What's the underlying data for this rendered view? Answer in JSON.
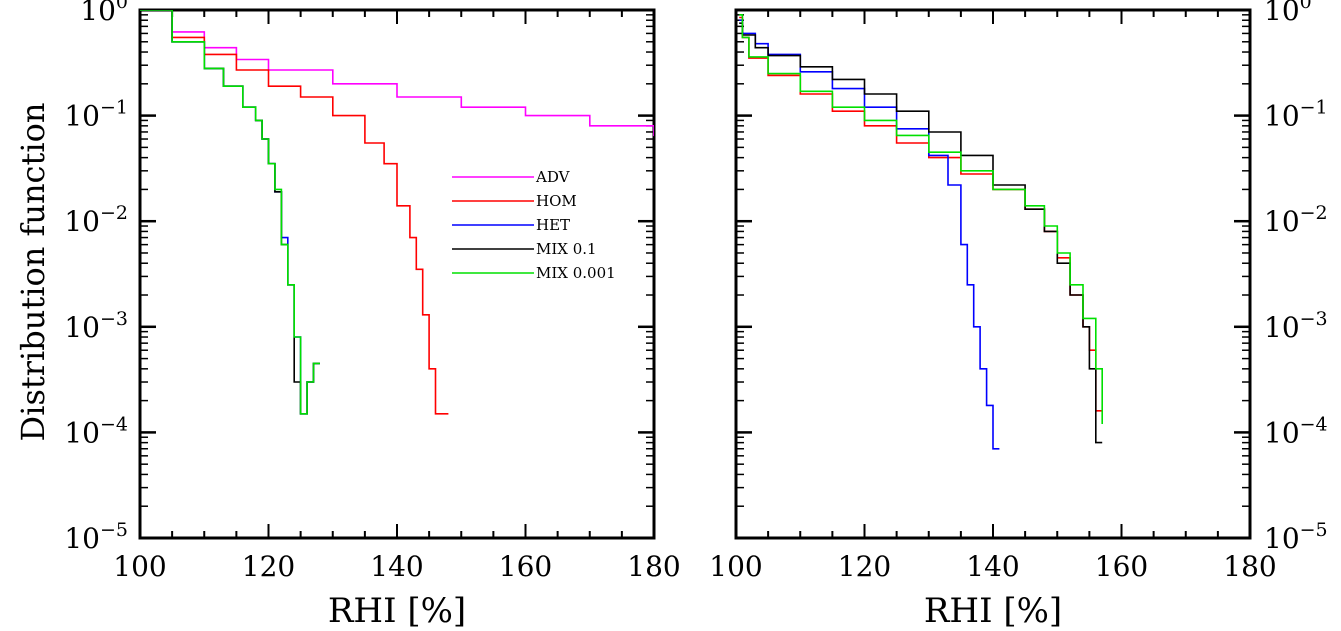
{
  "figure": {
    "ylabel": "Distribution function",
    "legend": {
      "placement": "left panel, right-center",
      "entries": [
        {
          "name": "ADV",
          "color": "#ff00ff"
        },
        {
          "name": "HOM",
          "color": "#ff0000"
        },
        {
          "name": "HET",
          "color": "#0000ff"
        },
        {
          "name": "MIX 0.1",
          "color": "#000000"
        },
        {
          "name": "MIX 0.001",
          "color": "#00e000"
        }
      ]
    }
  },
  "chart_data": [
    {
      "type": "line",
      "panel": "left",
      "xlabel": "RHI [%]",
      "ylabel": "Distribution function",
      "xlim": [
        100,
        180
      ],
      "ylim": [
        1e-05,
        1
      ],
      "yscale": "log",
      "xticks": [
        100,
        120,
        140,
        160,
        180
      ],
      "yticks": [
        {
          "value": 1,
          "base": "10",
          "exp": "0"
        },
        {
          "value": 0.1,
          "base": "10",
          "exp": "−1"
        },
        {
          "value": 0.01,
          "base": "10",
          "exp": "−2"
        },
        {
          "value": 0.001,
          "base": "10",
          "exp": "−3"
        },
        {
          "value": 0.0001,
          "base": "10",
          "exp": "−4"
        },
        {
          "value": 1e-05,
          "base": "10",
          "exp": "−5"
        }
      ],
      "grid": false,
      "series": [
        {
          "name": "ADV",
          "color": "#ff00ff",
          "points": [
            [
              100,
              1
            ],
            [
              105,
              0.62
            ],
            [
              110,
              0.44
            ],
            [
              115,
              0.34
            ],
            [
              120,
              0.27
            ],
            [
              130,
              0.2
            ],
            [
              140,
              0.15
            ],
            [
              150,
              0.12
            ],
            [
              160,
              0.1
            ],
            [
              170,
              0.08
            ],
            [
              180,
              0.064
            ]
          ]
        },
        {
          "name": "HOM",
          "color": "#ff0000",
          "points": [
            [
              100,
              1
            ],
            [
              105,
              0.55
            ],
            [
              110,
              0.38
            ],
            [
              115,
              0.27
            ],
            [
              120,
              0.19
            ],
            [
              125,
              0.15
            ],
            [
              130,
              0.1
            ],
            [
              135,
              0.055
            ],
            [
              138,
              0.035
            ],
            [
              140,
              0.014
            ],
            [
              142,
              0.007
            ],
            [
              143,
              0.0035
            ],
            [
              144,
              0.0013
            ],
            [
              145,
              0.0004
            ],
            [
              146,
              0.00015
            ],
            [
              148,
              0.00015
            ]
          ]
        },
        {
          "name": "HET",
          "color": "#0000ff",
          "points": [
            [
              100,
              1
            ],
            [
              105,
              0.5
            ],
            [
              110,
              0.28
            ],
            [
              113,
              0.19
            ],
            [
              116,
              0.12
            ],
            [
              118,
              0.09
            ],
            [
              119,
              0.06
            ],
            [
              120,
              0.035
            ],
            [
              121,
              0.019
            ],
            [
              122,
              0.007
            ],
            [
              123,
              0.0025
            ],
            [
              124,
              0.0008
            ],
            [
              125,
              0.00015
            ],
            [
              126,
              0.0003
            ],
            [
              127,
              0.00045
            ],
            [
              128,
              0.00045
            ]
          ]
        },
        {
          "name": "MIX 0.1",
          "color": "#000000",
          "points": [
            [
              100,
              1
            ],
            [
              105,
              0.5
            ],
            [
              110,
              0.28
            ],
            [
              113,
              0.19
            ],
            [
              116,
              0.12
            ],
            [
              118,
              0.09
            ],
            [
              119,
              0.06
            ],
            [
              120,
              0.035
            ],
            [
              121,
              0.019
            ],
            [
              122,
              0.006
            ],
            [
              123,
              0.0025
            ],
            [
              124,
              0.0003
            ],
            [
              125,
              0.00015
            ],
            [
              126,
              0.0003
            ],
            [
              127,
              0.00045
            ],
            [
              128,
              0.00045
            ]
          ]
        },
        {
          "name": "MIX 0.001",
          "color": "#00e000",
          "points": [
            [
              100,
              1
            ],
            [
              105,
              0.5
            ],
            [
              110,
              0.28
            ],
            [
              113,
              0.19
            ],
            [
              116,
              0.12
            ],
            [
              118,
              0.09
            ],
            [
              119,
              0.06
            ],
            [
              120,
              0.035
            ],
            [
              121,
              0.02
            ],
            [
              122,
              0.006
            ],
            [
              123,
              0.0025
            ],
            [
              124,
              0.0008
            ],
            [
              125,
              0.00015
            ],
            [
              126,
              0.0003
            ],
            [
              127,
              0.00045
            ],
            [
              128,
              0.00045
            ]
          ]
        }
      ]
    },
    {
      "type": "line",
      "panel": "right",
      "xlabel": "RHI [%]",
      "xlim": [
        100,
        180
      ],
      "ylim": [
        1e-05,
        1
      ],
      "yscale": "log",
      "xticks": [
        100,
        120,
        140,
        160,
        180
      ],
      "yticks": [
        {
          "value": 1,
          "base": "10",
          "exp": "0"
        },
        {
          "value": 0.1,
          "base": "10",
          "exp": "−1"
        },
        {
          "value": 0.01,
          "base": "10",
          "exp": "−2"
        },
        {
          "value": 0.001,
          "base": "10",
          "exp": "−3"
        },
        {
          "value": 0.0001,
          "base": "10",
          "exp": "−4"
        },
        {
          "value": 1e-05,
          "base": "10",
          "exp": "−5"
        }
      ],
      "grid": false,
      "series": [
        {
          "name": "HOM",
          "color": "#ff0000",
          "points": [
            [
              100.5,
              0.85
            ],
            [
              101,
              0.55
            ],
            [
              102,
              0.35
            ],
            [
              105,
              0.24
            ],
            [
              110,
              0.16
            ],
            [
              115,
              0.11
            ],
            [
              120,
              0.08
            ],
            [
              125,
              0.055
            ],
            [
              130,
              0.04
            ],
            [
              135,
              0.028
            ],
            [
              140,
              0.02
            ],
            [
              145,
              0.013
            ],
            [
              148,
              0.008
            ],
            [
              150,
              0.0045
            ],
            [
              152,
              0.002
            ],
            [
              154,
              0.001
            ],
            [
              155,
              0.0006
            ],
            [
              156,
              0.00016
            ],
            [
              157,
              0.00016
            ]
          ]
        },
        {
          "name": "HET",
          "color": "#0000ff",
          "points": [
            [
              100.5,
              0.8
            ],
            [
              101,
              0.6
            ],
            [
              103,
              0.48
            ],
            [
              105,
              0.38
            ],
            [
              110,
              0.26
            ],
            [
              115,
              0.18
            ],
            [
              120,
              0.12
            ],
            [
              125,
              0.075
            ],
            [
              130,
              0.042
            ],
            [
              133,
              0.022
            ],
            [
              135,
              0.006
            ],
            [
              136,
              0.0025
            ],
            [
              137,
              0.001
            ],
            [
              138,
              0.0004
            ],
            [
              139,
              0.00018
            ],
            [
              140,
              7e-05
            ],
            [
              141,
              7e-05
            ]
          ]
        },
        {
          "name": "MIX 0.1",
          "color": "#000000",
          "points": [
            [
              100.5,
              0.75
            ],
            [
              101,
              0.58
            ],
            [
              103,
              0.44
            ],
            [
              105,
              0.37
            ],
            [
              110,
              0.29
            ],
            [
              115,
              0.22
            ],
            [
              120,
              0.16
            ],
            [
              125,
              0.11
            ],
            [
              130,
              0.07
            ],
            [
              135,
              0.042
            ],
            [
              140,
              0.022
            ],
            [
              145,
              0.013
            ],
            [
              148,
              0.008
            ],
            [
              150,
              0.004
            ],
            [
              152,
              0.002
            ],
            [
              154,
              0.001
            ],
            [
              155,
              0.0004
            ],
            [
              156,
              8e-05
            ],
            [
              157,
              8e-05
            ]
          ]
        },
        {
          "name": "MIX 0.001",
          "color": "#00e000",
          "points": [
            [
              100.5,
              0.9
            ],
            [
              101,
              0.55
            ],
            [
              102,
              0.36
            ],
            [
              105,
              0.25
            ],
            [
              110,
              0.17
            ],
            [
              115,
              0.12
            ],
            [
              120,
              0.09
            ],
            [
              125,
              0.065
            ],
            [
              130,
              0.045
            ],
            [
              135,
              0.03
            ],
            [
              140,
              0.02
            ],
            [
              145,
              0.014
            ],
            [
              148,
              0.009
            ],
            [
              150,
              0.005
            ],
            [
              152,
              0.0025
            ],
            [
              154,
              0.0012
            ],
            [
              156,
              0.0004
            ],
            [
              157,
              0.00012
            ]
          ]
        }
      ]
    }
  ]
}
